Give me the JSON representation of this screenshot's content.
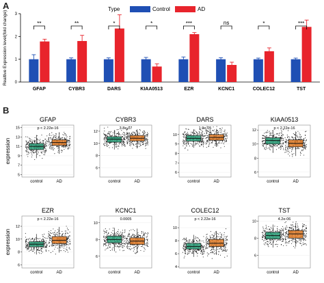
{
  "panel_a": {
    "letter": "A"
  },
  "panel_b": {
    "letter": "B"
  },
  "chart_data": [
    {
      "type": "bar",
      "title": "",
      "xlabel": "",
      "ylabel": "Realtive Expression level(fold change)",
      "ylim": [
        0,
        3
      ],
      "yticks": [
        0,
        1,
        2,
        3
      ],
      "legend": {
        "title": "Type",
        "placement": "top"
      },
      "categories": [
        "GFAP",
        "CYBR3",
        "DARS",
        "KIAA0513",
        "EZR",
        "KCNC1",
        "COLEC12",
        "TST"
      ],
      "significance": [
        "**",
        "**",
        "*",
        "*",
        "***",
        "ns",
        "*",
        "***"
      ],
      "series": [
        {
          "name": "Control",
          "color": "#1f4fb4",
          "values": [
            1.0,
            1.0,
            1.0,
            1.0,
            1.0,
            1.0,
            1.0,
            1.0
          ],
          "errors": [
            0.2,
            0.06,
            0.06,
            0.08,
            0.1,
            0.07,
            0.05,
            0.05
          ]
        },
        {
          "name": "AD",
          "color": "#e8242c",
          "values": [
            1.78,
            1.8,
            2.35,
            0.68,
            2.1,
            0.75,
            1.35,
            2.42
          ],
          "errors": [
            0.1,
            0.25,
            0.6,
            0.12,
            0.07,
            0.12,
            0.15,
            0.3
          ]
        }
      ]
    },
    {
      "type": "box",
      "title": "GFAP",
      "ylabel": "expression",
      "categories": [
        "control",
        "AD"
      ],
      "ylim": [
        4.5,
        15.5
      ],
      "yticks": [
        5,
        7,
        9,
        11,
        13,
        15
      ],
      "pvalue": "p < 2.22e-16",
      "boxes": [
        {
          "q1": 10.3,
          "median": 11.0,
          "q3": 11.6,
          "low": 8.5,
          "high": 13.4
        },
        {
          "q1": 11.2,
          "median": 11.8,
          "q3": 12.4,
          "low": 9.4,
          "high": 14.0
        }
      ]
    },
    {
      "type": "box",
      "title": "CYBR3",
      "ylabel": "",
      "categories": [
        "control",
        "AD"
      ],
      "ylim": [
        4.5,
        13
      ],
      "yticks": [
        6,
        8,
        10,
        12
      ],
      "pvalue": "3.8e-07",
      "boxes": [
        {
          "q1": 10.2,
          "median": 10.7,
          "q3": 11.1,
          "low": 9.0,
          "high": 12.2
        },
        {
          "q1": 10.4,
          "median": 10.85,
          "q3": 11.3,
          "low": 9.2,
          "high": 12.3
        }
      ]
    },
    {
      "type": "box",
      "title": "DARS",
      "ylabel": "",
      "categories": [
        "control",
        "AD"
      ],
      "ylim": [
        5.5,
        11
      ],
      "yticks": [
        6,
        7,
        8,
        9,
        10
      ],
      "pvalue": "1.9e-05",
      "boxes": [
        {
          "q1": 9.3,
          "median": 9.6,
          "q3": 9.9,
          "low": 8.6,
          "high": 10.5
        },
        {
          "q1": 9.4,
          "median": 9.7,
          "q3": 10.0,
          "low": 8.7,
          "high": 10.6
        }
      ]
    },
    {
      "type": "box",
      "title": "KIAA0513",
      "ylabel": "",
      "categories": [
        "control",
        "AD"
      ],
      "ylim": [
        5.3,
        12.7
      ],
      "yticks": [
        6,
        8,
        10,
        12
      ],
      "pvalue": "p < 2.22e-16",
      "boxes": [
        {
          "q1": 10.0,
          "median": 10.5,
          "q3": 10.9,
          "low": 8.8,
          "high": 12.0
        },
        {
          "q1": 9.6,
          "median": 10.1,
          "q3": 10.6,
          "low": 8.3,
          "high": 11.8
        }
      ]
    },
    {
      "type": "box",
      "title": "EZR",
      "ylabel": "expression",
      "categories": [
        "control",
        "AD"
      ],
      "ylim": [
        5.5,
        13.6
      ],
      "yticks": [
        6,
        8,
        10,
        12
      ],
      "pvalue": "p < 2.22e-16",
      "boxes": [
        {
          "q1": 8.8,
          "median": 9.2,
          "q3": 9.6,
          "low": 7.6,
          "high": 10.8
        },
        {
          "q1": 9.3,
          "median": 9.8,
          "q3": 10.4,
          "low": 7.9,
          "high": 11.9
        }
      ]
    },
    {
      "type": "box",
      "title": "KCNC1",
      "ylabel": "",
      "categories": [
        "control",
        "AD"
      ],
      "ylim": [
        4.6,
        10.8
      ],
      "yticks": [
        6,
        8,
        10
      ],
      "pvalue": "0.0005",
      "boxes": [
        {
          "q1": 7.6,
          "median": 8.0,
          "q3": 8.4,
          "low": 6.6,
          "high": 9.4
        },
        {
          "q1": 7.4,
          "median": 7.8,
          "q3": 8.2,
          "low": 6.4,
          "high": 9.3
        }
      ]
    },
    {
      "type": "box",
      "title": "COLEC12",
      "ylabel": "",
      "categories": [
        "control",
        "AD"
      ],
      "ylim": [
        3.8,
        11.8
      ],
      "yticks": [
        4,
        6,
        8,
        10
      ],
      "pvalue": "p < 2.22e-16",
      "boxes": [
        {
          "q1": 6.7,
          "median": 7.1,
          "q3": 7.6,
          "low": 5.5,
          "high": 8.9
        },
        {
          "q1": 7.1,
          "median": 7.6,
          "q3": 8.2,
          "low": 5.8,
          "high": 9.5
        }
      ]
    },
    {
      "type": "box",
      "title": "TST",
      "ylabel": "",
      "categories": [
        "control",
        "AD"
      ],
      "ylim": [
        4.5,
        10.6
      ],
      "yticks": [
        6,
        8,
        10
      ],
      "pvalue": "4.2e-06",
      "boxes": [
        {
          "q1": 7.9,
          "median": 8.3,
          "q3": 8.7,
          "low": 6.9,
          "high": 9.6
        },
        {
          "q1": 8.0,
          "median": 8.5,
          "q3": 8.9,
          "low": 7.0,
          "high": 9.8
        }
      ]
    }
  ],
  "colors": {
    "control_box": "#2a9d78",
    "ad_box": "#e07b27"
  }
}
